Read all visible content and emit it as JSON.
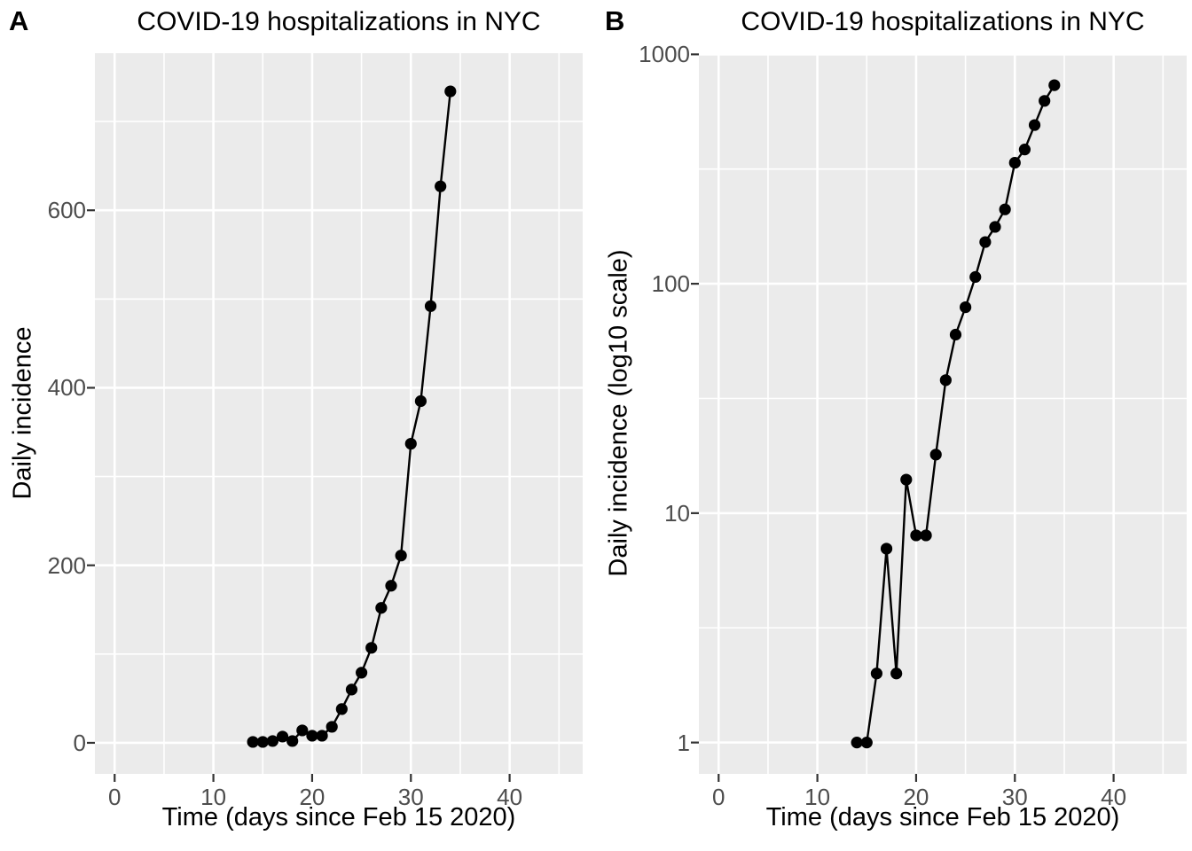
{
  "figure": {
    "background": "#FFFFFF",
    "panel_background": "#EBEBEB",
    "grid_color": "#FFFFFF",
    "tick_mark_color": "#333333",
    "tick_label_color": "#4D4D4D",
    "text_color": "#000000",
    "line_color": "#000000",
    "point_color": "#000000"
  },
  "chart_data": [
    {
      "panel_tag": "A",
      "type": "line",
      "title": "COVID-19 hospitalizations in NYC",
      "xlabel": "Time (days since Feb 15 2020)",
      "ylabel": "Daily incidence",
      "yscale": "linear",
      "x": [
        14,
        15,
        16,
        17,
        18,
        19,
        20,
        21,
        22,
        23,
        24,
        25,
        26,
        27,
        28,
        29,
        30,
        31,
        32,
        33,
        34
      ],
      "y": [
        1,
        1,
        2,
        7,
        2,
        14,
        8,
        8,
        18,
        38,
        60,
        79,
        107,
        152,
        177,
        211,
        337,
        385,
        492,
        627,
        734
      ],
      "xticks": [
        0,
        10,
        20,
        30,
        40
      ],
      "xminor": [
        5,
        15,
        25,
        35,
        45
      ],
      "yticks": [
        0,
        200,
        400,
        600
      ],
      "yminor": [
        100,
        300,
        500,
        700
      ],
      "xlim": [
        -2,
        47.4
      ],
      "ylim": [
        -35,
        777
      ],
      "grid": true,
      "legend": "none"
    },
    {
      "panel_tag": "B",
      "type": "line",
      "title": "COVID-19 hospitalizations in NYC",
      "xlabel": "Time (days since Feb 15 2020)",
      "ylabel": "Daily incidence (log10 scale)",
      "yscale": "log10",
      "x": [
        14,
        15,
        16,
        17,
        18,
        19,
        20,
        21,
        22,
        23,
        24,
        25,
        26,
        27,
        28,
        29,
        30,
        31,
        32,
        33,
        34
      ],
      "y": [
        1,
        1,
        2,
        7,
        2,
        14,
        8,
        8,
        18,
        38,
        60,
        79,
        107,
        152,
        177,
        211,
        337,
        385,
        492,
        627,
        734
      ],
      "xticks": [
        0,
        10,
        20,
        30,
        40
      ],
      "xminor": [
        5,
        15,
        25,
        35,
        45
      ],
      "yticks": [
        1,
        10,
        100,
        1000
      ],
      "yminor": [
        3.162,
        31.62,
        316.2
      ],
      "xlim": [
        -2,
        47.4
      ],
      "ylim": [
        0.73,
        1012
      ],
      "grid": true,
      "legend": "none"
    }
  ]
}
